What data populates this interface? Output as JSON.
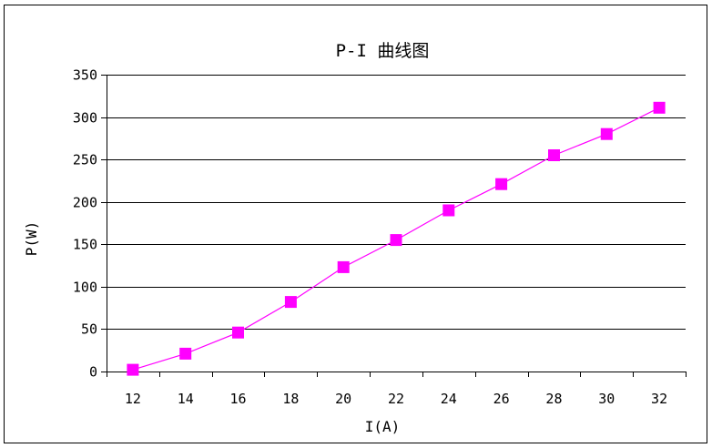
{
  "chart_data": {
    "type": "line",
    "title": "P-I 曲线图",
    "xlabel": "I(A)",
    "ylabel": "P(W)",
    "x": [
      12,
      14,
      16,
      18,
      20,
      22,
      24,
      26,
      28,
      30,
      32
    ],
    "x_tick_labels": [
      "12",
      "14",
      "16",
      "18",
      "20",
      "22",
      "24",
      "26",
      "28",
      "30",
      "32"
    ],
    "y_ticks": [
      0,
      50,
      100,
      150,
      200,
      250,
      300,
      350
    ],
    "y_tick_labels": [
      "0",
      "50",
      "100",
      "150",
      "200",
      "250",
      "300",
      "350"
    ],
    "ylim": [
      0,
      350
    ],
    "grid": "horizontal",
    "legend": "none",
    "series": [
      {
        "values": [
          2,
          21,
          46,
          82,
          123,
          155,
          190,
          221,
          255,
          280,
          311
        ],
        "color": "#ff00ff",
        "marker": "square"
      }
    ]
  }
}
